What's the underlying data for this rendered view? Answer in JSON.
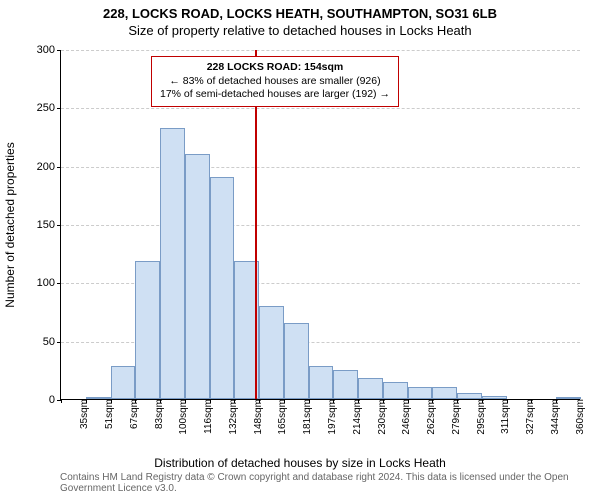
{
  "title": {
    "line1": "228, LOCKS ROAD, LOCKS HEATH, SOUTHAMPTON, SO31 6LB",
    "line2": "Size of property relative to detached houses in Locks Heath"
  },
  "chart": {
    "type": "histogram",
    "y_axis": {
      "label": "Number of detached properties",
      "min": 0,
      "max": 300,
      "step": 50
    },
    "x_axis": {
      "label": "Distribution of detached houses by size in Locks Heath",
      "categories": [
        "35sqm",
        "51sqm",
        "67sqm",
        "83sqm",
        "100sqm",
        "116sqm",
        "132sqm",
        "148sqm",
        "165sqm",
        "181sqm",
        "197sqm",
        "214sqm",
        "230sqm",
        "246sqm",
        "262sqm",
        "279sqm",
        "295sqm",
        "311sqm",
        "327sqm",
        "344sqm",
        "360sqm"
      ]
    },
    "values": [
      0,
      1,
      28,
      118,
      232,
      210,
      190,
      118,
      80,
      65,
      28,
      25,
      18,
      15,
      10,
      10,
      5,
      3,
      0,
      0,
      2
    ],
    "bar_fill": "#cfe0f3",
    "bar_stroke": "#7a9cc6",
    "grid_color": "#cccccc",
    "background": "#ffffff",
    "reference_line": {
      "value_sqm": 154,
      "color": "#c00000"
    },
    "annotation": {
      "title": "228 LOCKS ROAD: 154sqm",
      "line2": "← 83% of detached houses are smaller (926)",
      "line3": "17% of semi-detached houses are larger (192) →",
      "border_color": "#c00000"
    }
  },
  "footer": "Contains HM Land Registry data © Crown copyright and database right 2024. This data is licensed under the Open Government Licence v3.0."
}
